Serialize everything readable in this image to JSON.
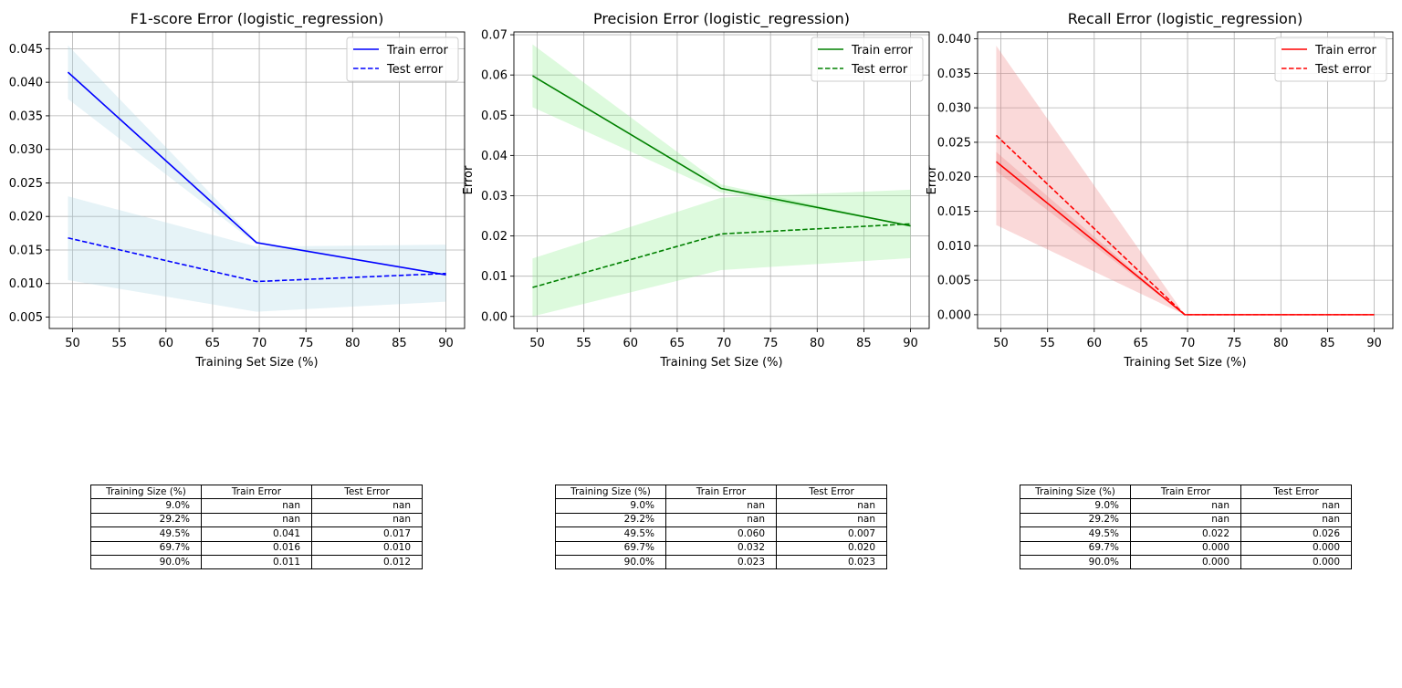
{
  "chart_data": [
    {
      "type": "line",
      "title": "F1-score Error (logistic_regression)",
      "xlabel": "Training Set Size (%)",
      "ylabel": "",
      "x": [
        49.5,
        69.7,
        90.0
      ],
      "xlim": [
        47.5,
        92.0
      ],
      "ylim": [
        0.0033,
        0.0475
      ],
      "xticks": [
        50,
        55,
        60,
        65,
        70,
        75,
        80,
        85,
        90
      ],
      "yticks": [
        0.005,
        0.01,
        0.015,
        0.02,
        0.025,
        0.03,
        0.035,
        0.04,
        0.045
      ],
      "ytick_labels": [
        "0.005",
        "0.010",
        "0.015",
        "0.020",
        "0.025",
        "0.030",
        "0.035",
        "0.040",
        "0.045"
      ],
      "grid": true,
      "legend": "top-right",
      "color": "#0000ff",
      "band_color": "#add8e6",
      "series": [
        {
          "name": "Train error",
          "style": "solid",
          "values": [
            0.0415,
            0.0161,
            0.0113
          ],
          "lower": [
            0.0375,
            0.0159,
            0.0113
          ],
          "upper": [
            0.0455,
            0.0163,
            0.0113
          ]
        },
        {
          "name": "Test error",
          "style": "dashed",
          "values": [
            0.0168,
            0.0103,
            0.0115
          ],
          "lower": [
            0.0105,
            0.0058,
            0.0073
          ],
          "upper": [
            0.023,
            0.0155,
            0.0158
          ]
        }
      ]
    },
    {
      "type": "line",
      "title": "Precision Error (logistic_regression)",
      "xlabel": "Training Set Size (%)",
      "ylabel": "Error",
      "x": [
        49.5,
        69.7,
        90.0
      ],
      "xlim": [
        47.5,
        92.0
      ],
      "ylim": [
        -0.003,
        0.0707
      ],
      "xticks": [
        50,
        55,
        60,
        65,
        70,
        75,
        80,
        85,
        90
      ],
      "yticks": [
        0.0,
        0.01,
        0.02,
        0.03,
        0.04,
        0.05,
        0.06,
        0.07
      ],
      "ytick_labels": [
        "0.00",
        "0.01",
        "0.02",
        "0.03",
        "0.04",
        "0.05",
        "0.06",
        "0.07"
      ],
      "grid": true,
      "legend": "top-right",
      "color": "#008000",
      "band_color": "#90ee90",
      "series": [
        {
          "name": "Train error",
          "style": "solid",
          "values": [
            0.0598,
            0.0318,
            0.0225
          ],
          "lower": [
            0.052,
            0.0308,
            0.0225
          ],
          "upper": [
            0.0676,
            0.0328,
            0.0225
          ]
        },
        {
          "name": "Test error",
          "style": "dashed",
          "values": [
            0.0072,
            0.0205,
            0.023
          ],
          "lower": [
            0.0,
            0.0115,
            0.0145
          ],
          "upper": [
            0.0144,
            0.0295,
            0.0315
          ]
        }
      ]
    },
    {
      "type": "line",
      "title": "Recall Error (logistic_regression)",
      "xlabel": "Training Set Size (%)",
      "ylabel": "Error",
      "x": [
        49.5,
        69.7,
        90.0
      ],
      "xlim": [
        47.5,
        92.0
      ],
      "ylim": [
        -0.002,
        0.041
      ],
      "xticks": [
        50,
        55,
        60,
        65,
        70,
        75,
        80,
        85,
        90
      ],
      "yticks": [
        0.0,
        0.005,
        0.01,
        0.015,
        0.02,
        0.025,
        0.03,
        0.035,
        0.04
      ],
      "ytick_labels": [
        "0.000",
        "0.005",
        "0.010",
        "0.015",
        "0.020",
        "0.025",
        "0.030",
        "0.035",
        "0.040"
      ],
      "grid": true,
      "legend": "top-right",
      "color": "#ff0000",
      "band_color": "#f08080",
      "series": [
        {
          "name": "Train error",
          "style": "solid",
          "values": [
            0.0222,
            0.0,
            0.0
          ],
          "lower": [
            0.0208,
            0.0,
            0.0
          ],
          "upper": [
            0.0236,
            0.0,
            0.0
          ]
        },
        {
          "name": "Test error",
          "style": "dashed",
          "values": [
            0.026,
            0.0,
            0.0
          ],
          "lower": [
            0.013,
            0.0,
            0.0
          ],
          "upper": [
            0.039,
            0.0,
            0.0
          ]
        }
      ]
    }
  ],
  "tables": [
    {
      "headers": [
        "Training Size (%)",
        "Train Error",
        "Test Error"
      ],
      "rows": [
        [
          "9.0%",
          "nan",
          "nan"
        ],
        [
          "29.2%",
          "nan",
          "nan"
        ],
        [
          "49.5%",
          "0.041",
          "0.017"
        ],
        [
          "69.7%",
          "0.016",
          "0.010"
        ],
        [
          "90.0%",
          "0.011",
          "0.012"
        ]
      ]
    },
    {
      "headers": [
        "Training Size (%)",
        "Train Error",
        "Test Error"
      ],
      "rows": [
        [
          "9.0%",
          "nan",
          "nan"
        ],
        [
          "29.2%",
          "nan",
          "nan"
        ],
        [
          "49.5%",
          "0.060",
          "0.007"
        ],
        [
          "69.7%",
          "0.032",
          "0.020"
        ],
        [
          "90.0%",
          "0.023",
          "0.023"
        ]
      ]
    },
    {
      "headers": [
        "Training Size (%)",
        "Train Error",
        "Test Error"
      ],
      "rows": [
        [
          "9.0%",
          "nan",
          "nan"
        ],
        [
          "29.2%",
          "nan",
          "nan"
        ],
        [
          "49.5%",
          "0.022",
          "0.026"
        ],
        [
          "69.7%",
          "0.000",
          "0.000"
        ],
        [
          "90.0%",
          "0.000",
          "0.000"
        ]
      ]
    }
  ]
}
